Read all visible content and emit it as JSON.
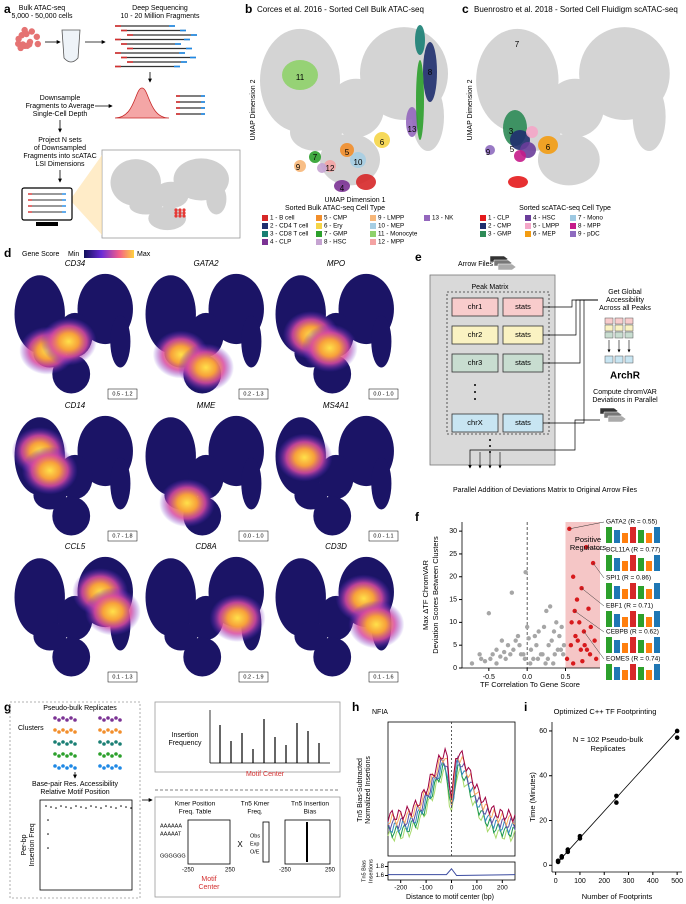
{
  "a": {
    "label": "a",
    "bulk": "Bulk ATAC-seq",
    "cells": "5,000 - 50,000 cells",
    "seq": "Deep Sequencing",
    "frags": "10 - 20 Million Fragments",
    "down": [
      "Downsample",
      "Fragments to Average",
      "Single-Cell Depth"
    ],
    "project": [
      "Project N sets",
      "of Downsampled",
      "Fragments into scATAC",
      "LSI Dimensions"
    ]
  },
  "b": {
    "label": "b",
    "title": "Corces et al. 2016 - Sorted Cell Bulk ATAC-seq",
    "x_label": "UMAP Dimension 1",
    "y_label": "UMAP Dimension 2",
    "cluster_labels": [
      "11",
      "8",
      "13",
      "6",
      "10",
      "5",
      "7",
      "9",
      "12",
      "4"
    ],
    "legend_title": "Sorted Bulk ATAC-seq Cell Type",
    "legend": [
      {
        "name": "1 - B cell",
        "color": "#d62728"
      },
      {
        "name": "2 - CD4 T cell",
        "color": "#1f2f6e"
      },
      {
        "name": "3 - CD8 T cell",
        "color": "#1a7f74"
      },
      {
        "name": "4 - CLP",
        "color": "#7b3294"
      },
      {
        "name": "5 - CMP",
        "color": "#f28e2b"
      },
      {
        "name": "6 - Ery",
        "color": "#f5d547"
      },
      {
        "name": "7 - GMP",
        "color": "#2ca02c"
      },
      {
        "name": "8 - HSC",
        "color": "#c5a3d1"
      },
      {
        "name": "9 - LMPP",
        "color": "#f7b779"
      },
      {
        "name": "10 - MEP",
        "color": "#a6cee3"
      },
      {
        "name": "11 - Monocyte",
        "color": "#8fd16a"
      },
      {
        "name": "12 - MPP",
        "color": "#f4a3a3"
      },
      {
        "name": "13 - NK",
        "color": "#9467bd"
      }
    ]
  },
  "c": {
    "label": "c",
    "title": "Buenrostro et al. 2018 - Sorted Cell Fluidigm scATAC-seq",
    "y_label": "UMAP Dimension 2",
    "cluster_labels": [
      "7",
      "3",
      "5",
      "6",
      "9"
    ],
    "legend_title": "Sorted scATAC-seq Cell Type",
    "legend": [
      {
        "name": "1 - CLP",
        "color": "#e41a1c"
      },
      {
        "name": "2 - CMP",
        "color": "#1f2f6e"
      },
      {
        "name": "3 - GMP",
        "color": "#2e8b57"
      },
      {
        "name": "4 - HSC",
        "color": "#6a3d9a"
      },
      {
        "name": "5 - LMPP",
        "color": "#f4a6c8"
      },
      {
        "name": "6 - MEP",
        "color": "#f39c12"
      },
      {
        "name": "7 - Mono",
        "color": "#9ec9e2"
      },
      {
        "name": "8 - MPP",
        "color": "#c51b8a"
      },
      {
        "name": "9 - pDC",
        "color": "#8e6bbf"
      }
    ]
  },
  "d": {
    "label": "d",
    "scale_title": "Gene Score",
    "min": "Min",
    "max": "Max",
    "genes": [
      {
        "name": "CD34",
        "range": "0.5 - 1.2"
      },
      {
        "name": "GATA2",
        "range": "0.2 - 1.3"
      },
      {
        "name": "MPO",
        "range": "0.0 - 1.0"
      },
      {
        "name": "CD14",
        "range": "0.7 - 1.8"
      },
      {
        "name": "MME",
        "range": "0.0 - 1.0"
      },
      {
        "name": "MS4A1",
        "range": "0.0 - 1.1"
      },
      {
        "name": "CCL5",
        "range": "0.1 - 1.3"
      },
      {
        "name": "CD8A",
        "range": "0.2 - 1.9"
      },
      {
        "name": "CD3D",
        "range": "0.1 - 1.6"
      }
    ]
  },
  "e": {
    "label": "e",
    "arrow_files": "Arrow Files",
    "peak_matrix": "Peak Matrix",
    "rows": [
      {
        "chr": "chr1",
        "stats": "stats",
        "color": "#f8cccc"
      },
      {
        "chr": "chr2",
        "stats": "stats",
        "color": "#faf2c2"
      },
      {
        "chr": "chr3",
        "stats": "stats",
        "color": "#c8ddd0"
      },
      {
        "chr": "chrX",
        "stats": "stats",
        "color": "#c8e5f2"
      }
    ],
    "global": [
      "Get Global",
      "Accessibility",
      "Across all Peaks"
    ],
    "logo": "ArchR",
    "compute": [
      "Compute chromVAR",
      "Deviations in Parallel"
    ],
    "footer": "Parallel Addition of Deviations Matrix to Original Arrow Files"
  },
  "f": {
    "label": "f",
    "type": "scatter",
    "y_label": [
      "Max ΔTF ChromVAR",
      "Deviation Scores Between Clusters"
    ],
    "x_label": "TF Correlation To Gene Score",
    "region_label": [
      "Positive",
      "Regulators"
    ],
    "regulators": [
      "GATA2 (R = 0.55)",
      "BCL11A (R = 0.77)",
      "SPI1 (R = 0.86)",
      "EBF1 (R = 0.71)",
      "CEBPB (R = 0.62)",
      "EOMES (R = 0.74)"
    ],
    "xlim": [
      -0.85,
      0.95
    ],
    "ylim": [
      0,
      32
    ],
    "xticks": [
      -0.5,
      {
        "value": 0,
        "label": "0.0"
      },
      0.5
    ],
    "yticks": [
      0,
      5,
      10,
      15,
      20,
      25,
      30
    ],
    "points": [
      {
        "color": "#a6a6a6",
        "x": [
          -0.72,
          -0.6,
          -0.55,
          -0.5,
          -0.45,
          -0.4,
          -0.35,
          -0.3,
          -0.25,
          -0.2,
          -0.18,
          -0.15,
          -0.1,
          -0.05,
          -0.02,
          0.02,
          0.05,
          0.1,
          0.12,
          0.15,
          0.2,
          0.22,
          0.25,
          0.28,
          0.3,
          0.32,
          0.35,
          0.38,
          0.4,
          0.42,
          0.45,
          0.48,
          -0.62,
          -0.48,
          -0.33,
          -0.22,
          -0.12,
          0.0,
          0.08,
          0.18,
          0.27,
          0.36,
          0.44,
          -0.4,
          -0.28,
          -0.08,
          0.04,
          0.14,
          0.24,
          0.34,
          -0.03,
          0.47
        ],
        "values": [
          1,
          2,
          1.5,
          12,
          3,
          4,
          2.5,
          3.5,
          5,
          16.5,
          4,
          6,
          5,
          3,
          21,
          6.5,
          4,
          7,
          5,
          8,
          3,
          9,
          12.5,
          5,
          13.5,
          6,
          8,
          10,
          4,
          7,
          9,
          5,
          3,
          2,
          6,
          3,
          7,
          9,
          2,
          3,
          2,
          3,
          4,
          1,
          2,
          3,
          1,
          2,
          1,
          1,
          2,
          3
        ]
      },
      {
        "color": "#d7191c",
        "x": [
          0.55,
          0.77,
          0.86,
          0.71,
          0.62,
          0.74,
          0.6,
          0.65,
          0.68,
          0.8,
          0.83,
          0.88,
          0.57,
          0.63,
          0.7,
          0.75,
          0.82,
          0.52,
          0.58,
          0.66,
          0.78,
          0.9,
          0.6,
          0.72
        ],
        "values": [
          30.5,
          26.5,
          23,
          17.5,
          12.5,
          8,
          20,
          15,
          10,
          13,
          9,
          6,
          5,
          7,
          4,
          5,
          3,
          2,
          10,
          6,
          4,
          2,
          1,
          1.5
        ]
      }
    ]
  },
  "g": {
    "label": "g",
    "replicates": "Pseudo-bulk Replicates",
    "clusters": "Clusters",
    "bp": [
      "Base-pair Res. Accessibility",
      "Relative Motif Position"
    ],
    "perbp": [
      "Per-bp",
      "Insertion Freq"
    ],
    "insertion": [
      "Insertion",
      "Frequency"
    ],
    "motif_center": "Motif Center",
    "kmer": [
      "Kmer Position",
      "Freq. Table"
    ],
    "tn5kmer": [
      "Tn5 Kmer",
      "Freq."
    ],
    "tn5bias": [
      "Tn5 Insertion",
      "Bias"
    ],
    "kmers": [
      "AAAAAA",
      "AAAAAT",
      "GGGGGG"
    ],
    "times": "X",
    "oe": [
      "Obs",
      "Exp",
      "O/E"
    ],
    "axis1": [
      "-250",
      "250"
    ],
    "axis2": [
      "-250",
      "250"
    ],
    "center": [
      "Motif",
      "Center"
    ]
  },
  "h": {
    "label": "h",
    "motif": "NFIA",
    "y_label": [
      "Tn5 Bias-Subtracted",
      "Normalized Insertions"
    ],
    "bias_label": [
      "Tn5 Bias",
      "Insertions"
    ],
    "x_label": "Distance to motif center (bp)",
    "xlim": [
      -250,
      250
    ],
    "xticks": [
      -200,
      -100,
      0,
      100,
      200
    ],
    "bias_ylim": [
      1.5,
      1.9
    ],
    "bias_yticks": [
      1.6,
      1.8
    ]
  },
  "i": {
    "label": "i",
    "type": "scatter",
    "title": "Optimized C++ TF Footprinting",
    "note": [
      "N = 102 Pseudo-bulk",
      "Replicates"
    ],
    "x_label": "Number of Footprints",
    "y_label": "Time (Minutes)",
    "xlim": [
      -15,
      520
    ],
    "ylim": [
      -3,
      64
    ],
    "xticks": [
      0,
      100,
      200,
      300,
      400,
      500
    ],
    "yticks": [
      0,
      20,
      40,
      60
    ],
    "x": [
      10,
      10,
      25,
      25,
      50,
      50,
      100,
      100,
      250,
      250,
      500,
      500
    ],
    "values": [
      1.5,
      2,
      3.5,
      4,
      6,
      7,
      12,
      13,
      28,
      31,
      57,
      60
    ],
    "color": "#000000"
  }
}
